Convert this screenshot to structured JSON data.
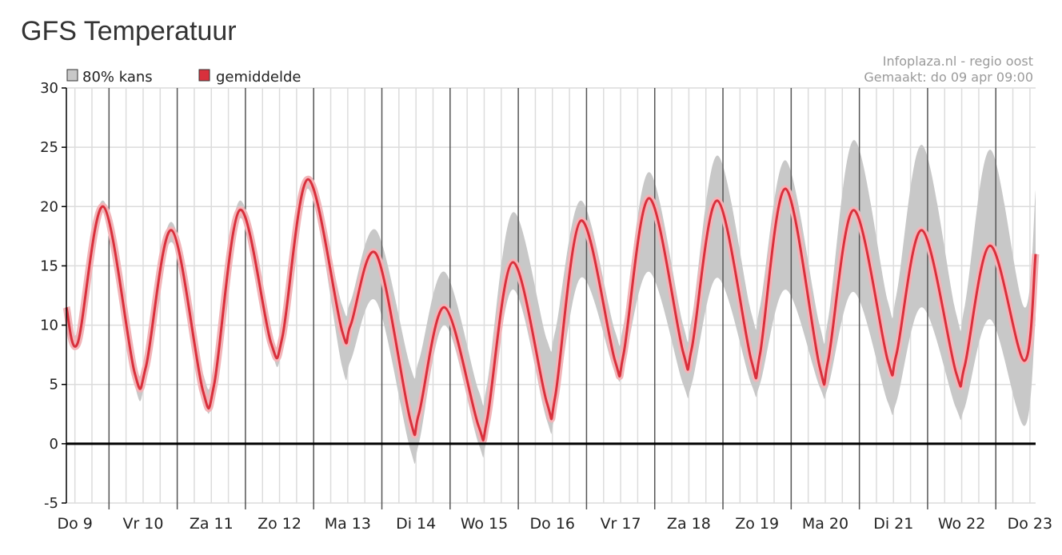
{
  "page": {
    "title": "GFS Temperatuur"
  },
  "credits": {
    "source": "Infoplaza.nl - regio oost",
    "made": "Gemaakt: do 09 apr 09:00"
  },
  "chart_data": {
    "type": "area",
    "title": "GFS Temperatuur",
    "legend_position": "top-left",
    "legend": [
      {
        "label": "80% kans",
        "color": "#c8c8c8"
      },
      {
        "label": "gemiddelde",
        "color": "#d9303c"
      }
    ],
    "ylim": [
      -5,
      30
    ],
    "yticks": [
      -5,
      0,
      5,
      10,
      15,
      20,
      25,
      30
    ],
    "grid": true,
    "zero_line": true,
    "days": [
      "Do 9",
      "Vr 10",
      "Za 11",
      "Zo 12",
      "Ma 13",
      "Di 14",
      "Wo 15",
      "Do 16",
      "Vr 17",
      "Za 18",
      "Zo 19",
      "Ma 20",
      "Di 21",
      "Wo 22",
      "Do 23"
    ],
    "x_unit": "hours since Do 9 00:00",
    "x_range_hours": [
      9,
      350
    ],
    "series": [
      {
        "name": "gemiddelde",
        "color": "#d9303c",
        "x": [
          9,
          13,
          22,
          33,
          37,
          46,
          57,
          61,
          70,
          81,
          85,
          94,
          106,
          109,
          118,
          130,
          133,
          142,
          154,
          157,
          166,
          178,
          181,
          190,
          202,
          205,
          214,
          226,
          229,
          238,
          250,
          253,
          262,
          274,
          277,
          286,
          298,
          301,
          310,
          322,
          325,
          334,
          346,
          350
        ],
        "values": [
          11.5,
          8.5,
          20,
          6,
          6.5,
          18,
          4.5,
          5,
          19.7,
          8.5,
          9,
          22.3,
          9.5,
          10,
          16,
          2,
          2.5,
          11.5,
          1.5,
          2,
          15.3,
          3.5,
          4,
          18.8,
          7,
          7.5,
          20.7,
          7.7,
          8,
          20.5,
          7,
          7.5,
          21.5,
          6.5,
          7,
          19.7,
          7,
          7.5,
          18,
          6,
          6.5,
          16.7,
          7,
          16
        ]
      },
      {
        "name": "80% kans",
        "color": "#c8c8c8",
        "x": [
          9,
          13,
          22,
          33,
          37,
          46,
          57,
          61,
          70,
          81,
          85,
          94,
          106,
          109,
          118,
          130,
          133,
          142,
          154,
          157,
          166,
          178,
          181,
          190,
          202,
          205,
          214,
          226,
          229,
          238,
          250,
          253,
          262,
          274,
          277,
          286,
          298,
          301,
          310,
          322,
          325,
          334,
          346,
          350
        ],
        "low": [
          11,
          8.3,
          19.5,
          5,
          5.5,
          17,
          4,
          4.5,
          19,
          8,
          8,
          21.5,
          6.5,
          7,
          12,
          -0.5,
          0,
          10,
          0,
          0.5,
          13,
          2,
          2.5,
          14,
          6,
          6.5,
          14.5,
          5,
          5,
          14,
          5,
          5,
          13,
          4.8,
          4.8,
          12.8,
          3.5,
          3.5,
          11.5,
          3,
          3,
          10.5,
          1.5,
          10.5
        ],
        "high": [
          11.5,
          9.5,
          20.5,
          7,
          7.5,
          18.7,
          6,
          6.5,
          20.5,
          9,
          10,
          22.5,
          11.7,
          12,
          18,
          6.5,
          7,
          14.5,
          4.5,
          5,
          19.5,
          8.8,
          9.5,
          20.5,
          9.5,
          10,
          22.9,
          10,
          10.5,
          24.3,
          11,
          11.5,
          23.9,
          10,
          10.5,
          25.6,
          12,
          12.5,
          25.2,
          11,
          11.5,
          24.8,
          11.5,
          21.4
        ]
      }
    ]
  }
}
